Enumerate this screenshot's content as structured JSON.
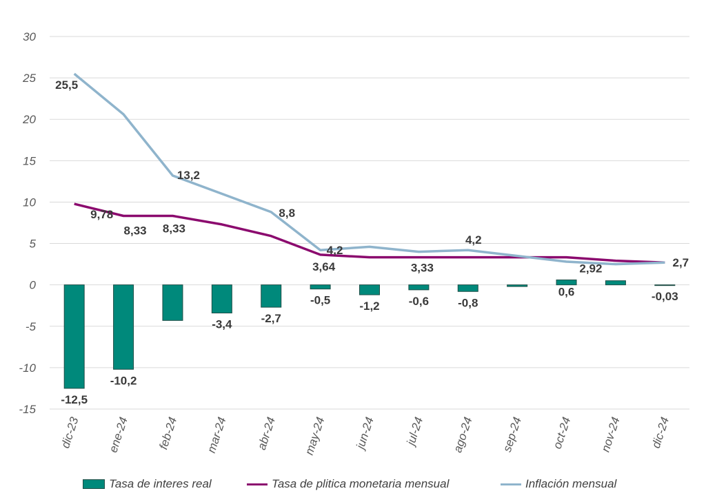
{
  "chart_data": {
    "type": "bar",
    "categories": [
      "dic-23",
      "ene-24",
      "feb-24",
      "mar-24",
      "abr-24",
      "may-24",
      "jun-24",
      "jul-24",
      "ago-24",
      "sep-24",
      "oct-24",
      "nov-24",
      "dic-24"
    ],
    "ylim": [
      -15,
      30
    ],
    "yticks": [
      30,
      25,
      20,
      15,
      10,
      5,
      0,
      -5,
      -10,
      -15
    ],
    "grid": true,
    "legend_position": "bottom",
    "series": [
      {
        "name": "Tasa de interes real",
        "kind": "bar",
        "color": "#00897b",
        "values": [
          -12.5,
          -10.2,
          -4.3,
          -3.4,
          -2.7,
          -0.5,
          -1.2,
          -0.6,
          -0.8,
          -0.2,
          0.6,
          0.5,
          -0.03
        ],
        "labels": [
          "-12,5",
          "-10,2",
          "",
          "-3,4",
          "-2,7",
          "-0,5",
          "-1,2",
          "-0,6",
          "-0,8",
          "",
          "0,6",
          "",
          "-0,03"
        ]
      },
      {
        "name": "Tasa de plitica monetaria mensual",
        "kind": "line",
        "color": "#8b0a6e",
        "values": [
          9.78,
          8.33,
          8.33,
          7.3,
          5.9,
          3.64,
          3.33,
          3.33,
          3.33,
          3.33,
          3.33,
          2.92,
          2.7
        ],
        "labels": [
          "9,78",
          "8,33",
          "8,33",
          "",
          "",
          "3,64",
          "",
          "3,33",
          "",
          "",
          "",
          "2,92",
          ""
        ]
      },
      {
        "name": "Inflación mensual",
        "kind": "line",
        "color": "#8fb4cc",
        "values": [
          25.5,
          20.6,
          13.2,
          11.0,
          8.8,
          4.2,
          4.6,
          4.0,
          4.2,
          3.5,
          2.8,
          2.5,
          2.7
        ],
        "labels": [
          "25,5",
          "",
          "13,2",
          "",
          "8,8",
          "4,2",
          "",
          "",
          "4,2",
          "",
          "",
          "",
          "2,7"
        ]
      }
    ]
  }
}
